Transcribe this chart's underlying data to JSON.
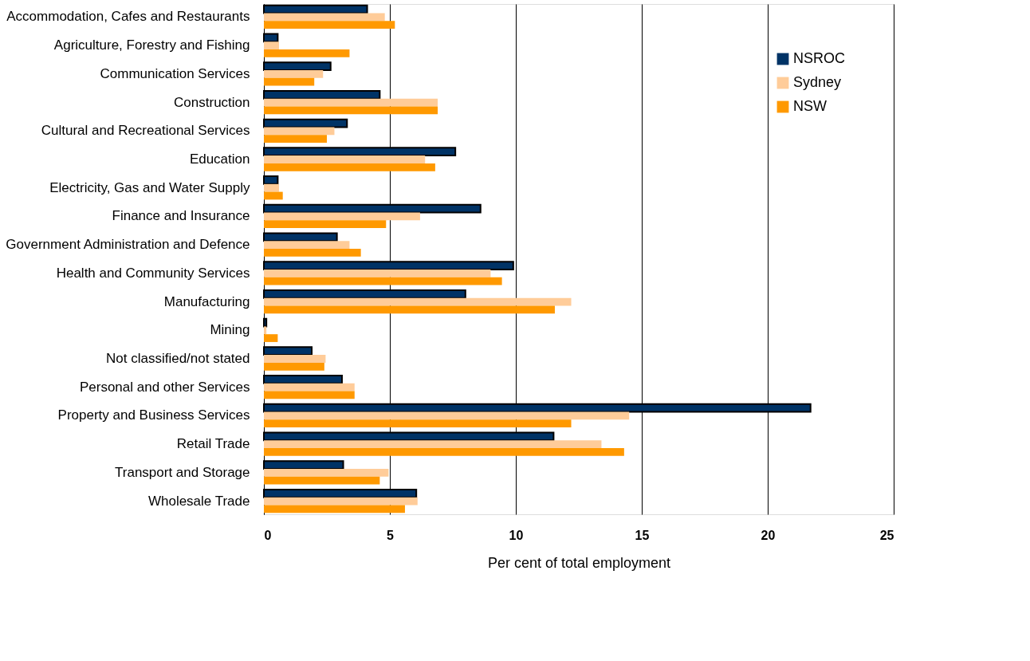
{
  "chart_data": {
    "type": "bar",
    "orientation": "horizontal",
    "xlabel": "Per cent of total employment",
    "categories": [
      "Accommodation, Cafes and Restaurants",
      "Agriculture, Forestry and Fishing",
      "Communication Services",
      "Construction",
      "Cultural and Recreational Services",
      "Education",
      "Electricity, Gas and Water Supply",
      "Finance and Insurance",
      "Government Administration and Defence",
      "Health and Community Services",
      "Manufacturing",
      "Mining",
      "Not classified/not stated",
      "Personal and other Services",
      "Property and Business Services",
      "Retail Trade",
      "Transport and Storage",
      "Wholesale Trade"
    ],
    "series": [
      {
        "name": "NSROC",
        "color": "#003366",
        "values": [
          4.1,
          0.55,
          2.65,
          4.6,
          3.3,
          7.6,
          0.55,
          8.6,
          2.9,
          9.9,
          8.0,
          0.1,
          1.9,
          3.1,
          21.7,
          11.5,
          3.15,
          6.05
        ]
      },
      {
        "name": "Sydney",
        "color": "#ffcc99",
        "values": [
          4.8,
          0.6,
          2.35,
          6.9,
          2.8,
          6.4,
          0.6,
          6.2,
          3.4,
          9.0,
          12.2,
          0.1,
          2.45,
          3.6,
          14.5,
          13.4,
          4.95,
          6.1
        ]
      },
      {
        "name": "NSW",
        "color": "#ff9900",
        "values": [
          5.2,
          3.4,
          2.0,
          6.9,
          2.5,
          6.8,
          0.75,
          4.85,
          3.85,
          9.45,
          11.55,
          0.55,
          2.4,
          3.6,
          12.2,
          14.3,
          4.6,
          5.6
        ]
      }
    ],
    "xlim": [
      0,
      25
    ],
    "xticks": [
      0,
      5,
      10,
      15,
      20,
      25
    ],
    "grid": "x",
    "legend": "top right"
  }
}
